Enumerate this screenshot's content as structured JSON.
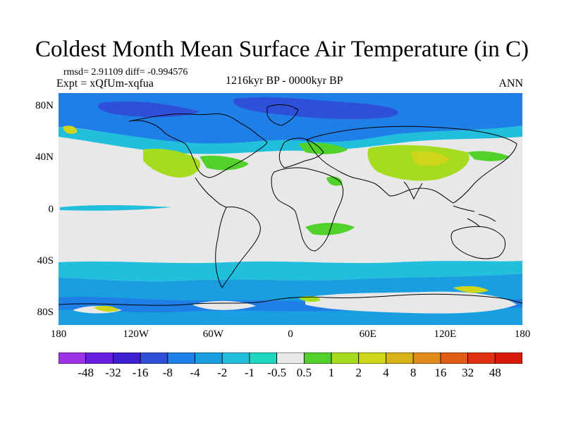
{
  "title": "Coldest Month Mean Surface Air Temperature (in C)",
  "stats": "rmsd= 2.91109 diff= -0.994576",
  "experiment": "Expt = xQfUm-xqfua",
  "period": "1216kyr BP - 0000kyr BP",
  "season": "ANN",
  "lat_labels": [
    "80N",
    "40N",
    "0",
    "40S",
    "80S"
  ],
  "lat_values": [
    80,
    40,
    0,
    -40,
    -80
  ],
  "lon_labels": [
    "180",
    "120W",
    "60W",
    "0",
    "60E",
    "120E",
    "180"
  ],
  "lon_values": [
    -180,
    -120,
    -60,
    0,
    60,
    120,
    180
  ],
  "colorbar": {
    "labels": [
      "-48",
      "-32",
      "-16",
      "-8",
      "-4",
      "-2",
      "-1",
      "-0.5",
      "0.5",
      "1",
      "2",
      "4",
      "8",
      "16",
      "32",
      "48"
    ],
    "colors": [
      "#9b33e6",
      "#6a1fe0",
      "#3d1fcf",
      "#2e50d9",
      "#1f7fe6",
      "#199fe0",
      "#21bfdc",
      "#1fd6c0",
      "#e8e8e8",
      "#52d12a",
      "#a5dc1f",
      "#cfd61a",
      "#d8b31a",
      "#e08a1c",
      "#e05a18",
      "#e0300f",
      "#d81a0a"
    ]
  },
  "colors": {
    "land_outline": "#000000",
    "neutral": "#e8e8e8",
    "light_cool": "#21bfdc",
    "cool": "#199fe0",
    "cold": "#1f7fe6",
    "very_cold": "#2e50d9",
    "warm_green": "#a5dc1f",
    "green": "#52d12a",
    "yellow": "#cfd61a"
  }
}
